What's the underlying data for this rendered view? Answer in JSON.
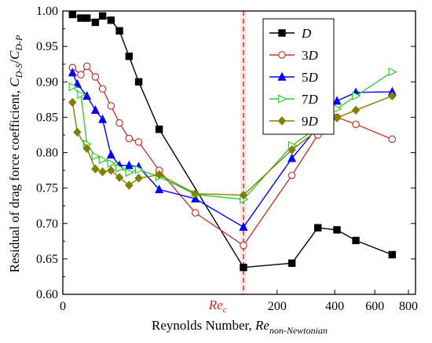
{
  "chart_data": {
    "type": "line",
    "xlabel_prefix": "Reynolds Number, ",
    "xlabel_var": "Re",
    "xlabel_sub": "non-Newtonian",
    "ylabel_prefix": "Residual of drag force coefficient, ",
    "ylabel_var1": "C",
    "ylabel_sub1": "D-S",
    "ylabel_sep": "/",
    "ylabel_var2": "C",
    "ylabel_sub2": "D-P",
    "ylim": [
      0.6,
      1.0
    ],
    "y_ticks": [
      "0.60",
      "0.65",
      "0.70",
      "0.75",
      "0.80",
      "0.85",
      "0.90",
      "0.95",
      "1.00"
    ],
    "x_ticks": [
      {
        "label": "0",
        "x": 0
      },
      {
        "label": "200",
        "x": 200
      },
      {
        "label": "400",
        "x": 400
      },
      {
        "label": "600",
        "x": 600
      },
      {
        "label": "800",
        "x": 800
      }
    ],
    "critical": {
      "label_var": "Re",
      "label_sub": "c",
      "x": 150,
      "color": "#c0392b"
    },
    "series": [
      {
        "name": "D",
        "name_suffix": "",
        "color": "#000000",
        "marker": "square-filled",
        "points": [
          [
            8,
            0.995
          ],
          [
            15,
            0.99
          ],
          [
            20,
            0.99
          ],
          [
            27,
            0.984
          ],
          [
            33,
            0.993
          ],
          [
            40,
            0.987
          ],
          [
            47,
            0.972
          ],
          [
            55,
            0.936
          ],
          [
            63,
            0.9
          ],
          [
            80,
            0.833
          ],
          [
            150,
            0.638
          ],
          [
            240,
            0.644
          ],
          [
            330,
            0.694
          ],
          [
            410,
            0.691
          ],
          [
            500,
            0.676
          ],
          [
            700,
            0.656
          ]
        ]
      },
      {
        "name": "D",
        "name_suffix": "3",
        "color": "#c0392b",
        "marker": "circle-open",
        "points": [
          [
            8,
            0.92
          ],
          [
            15,
            0.91
          ],
          [
            20,
            0.922
          ],
          [
            27,
            0.907
          ],
          [
            33,
            0.89
          ],
          [
            40,
            0.866
          ],
          [
            47,
            0.842
          ],
          [
            55,
            0.82
          ],
          [
            63,
            0.815
          ],
          [
            80,
            0.775
          ],
          [
            110,
            0.715
          ],
          [
            150,
            0.669
          ],
          [
            240,
            0.768
          ],
          [
            330,
            0.825
          ],
          [
            410,
            0.85
          ],
          [
            500,
            0.84
          ],
          [
            700,
            0.819
          ]
        ]
      },
      {
        "name": "D",
        "name_suffix": "5",
        "color": "#0000ff",
        "marker": "triangle-up-filled",
        "points": [
          [
            8,
            0.913
          ],
          [
            12,
            0.897
          ],
          [
            20,
            0.88
          ],
          [
            27,
            0.86
          ],
          [
            33,
            0.847
          ],
          [
            40,
            0.797
          ],
          [
            47,
            0.782
          ],
          [
            55,
            0.782
          ],
          [
            63,
            0.78
          ],
          [
            80,
            0.748
          ],
          [
            110,
            0.735
          ],
          [
            150,
            0.695
          ],
          [
            240,
            0.792
          ],
          [
            330,
            0.836
          ],
          [
            410,
            0.873
          ],
          [
            500,
            0.885
          ],
          [
            700,
            0.886
          ]
        ]
      },
      {
        "name": "D",
        "name_suffix": "7",
        "color": "#33cc33",
        "marker": "triangle-right-open",
        "points": [
          [
            8,
            0.893
          ],
          [
            15,
            0.882
          ],
          [
            20,
            0.812
          ],
          [
            27,
            0.795
          ],
          [
            33,
            0.79
          ],
          [
            40,
            0.785
          ],
          [
            47,
            0.778
          ],
          [
            55,
            0.772
          ],
          [
            63,
            0.776
          ],
          [
            80,
            0.766
          ],
          [
            110,
            0.741
          ],
          [
            150,
            0.734
          ],
          [
            240,
            0.81
          ],
          [
            330,
            0.836
          ],
          [
            410,
            0.862
          ],
          [
            500,
            0.88
          ],
          [
            700,
            0.914
          ]
        ]
      },
      {
        "name": "D",
        "name_suffix": "9",
        "color": "#808000",
        "marker": "diamond-filled",
        "points": [
          [
            8,
            0.871
          ],
          [
            12,
            0.829
          ],
          [
            20,
            0.806
          ],
          [
            27,
            0.777
          ],
          [
            33,
            0.773
          ],
          [
            40,
            0.775
          ],
          [
            47,
            0.765
          ],
          [
            55,
            0.754
          ],
          [
            63,
            0.764
          ],
          [
            80,
            0.769
          ],
          [
            110,
            0.742
          ],
          [
            150,
            0.74
          ],
          [
            240,
            0.804
          ],
          [
            330,
            0.832
          ],
          [
            410,
            0.849
          ],
          [
            500,
            0.86
          ],
          [
            700,
            0.88
          ]
        ]
      }
    ],
    "legend_position": "top-right",
    "grid": false
  }
}
